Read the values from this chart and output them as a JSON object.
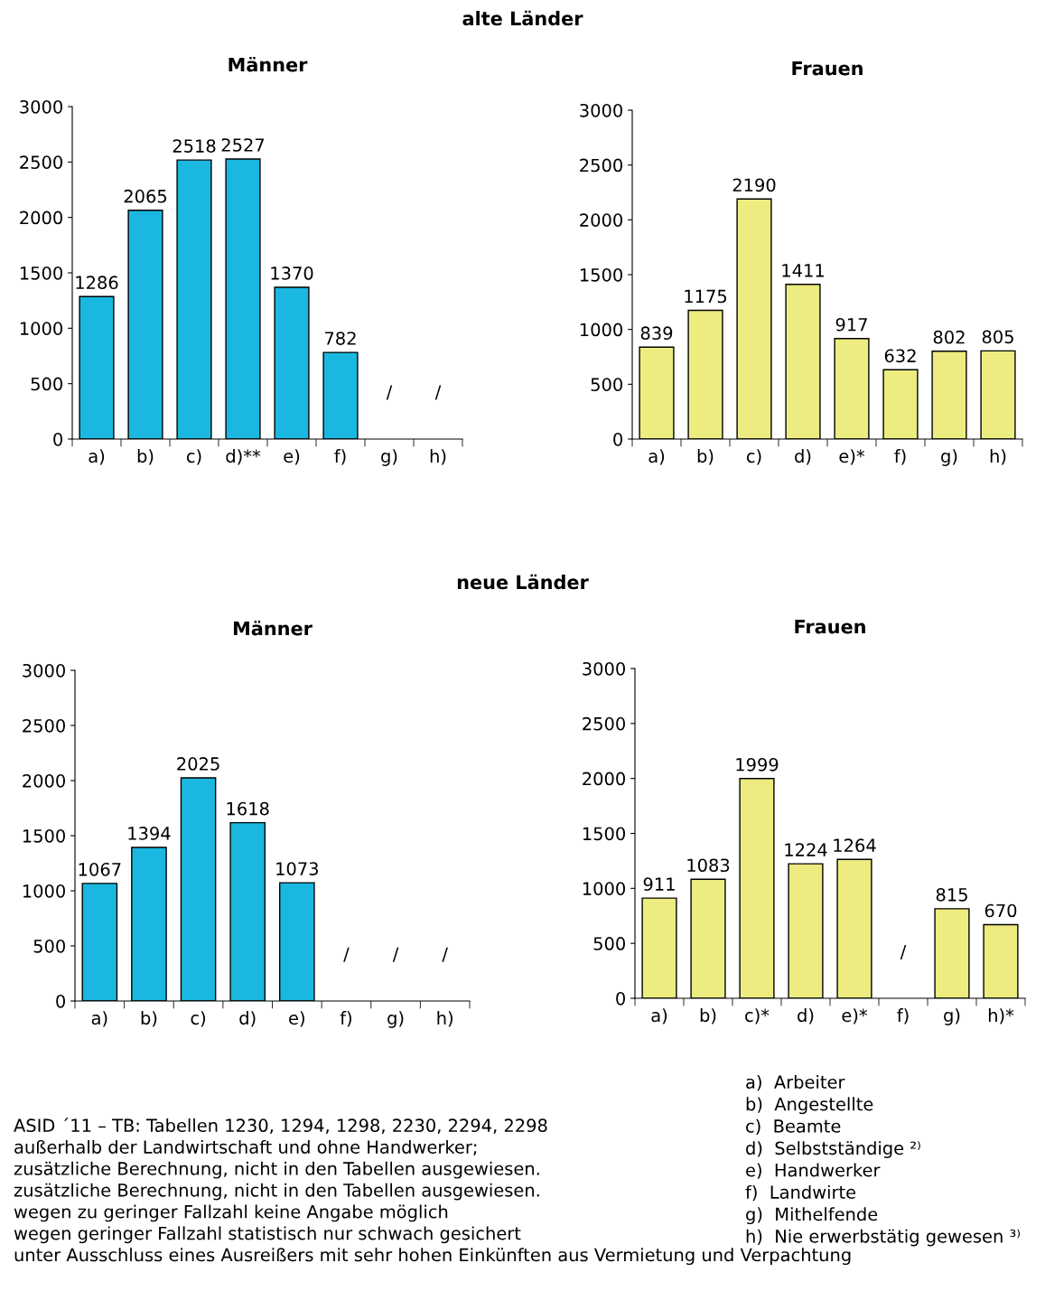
{
  "chart_data": [
    {
      "type": "bar",
      "title": "Männer",
      "annotations": [
        "alte Länder"
      ],
      "categories": [
        "a)",
        "b)",
        "c)",
        "d)**",
        "e)",
        "f)",
        "g)",
        "h)"
      ],
      "values": [
        1286,
        2065,
        2518,
        2527,
        1370,
        782,
        null,
        null
      ],
      "value_labels": [
        "1286",
        "2065",
        "2518",
        "2527",
        "1370",
        "782",
        "/",
        "/"
      ],
      "color": "#1ab8e0",
      "ylim": [
        0,
        3000
      ],
      "yticks": [
        0,
        500,
        1000,
        1500,
        2000,
        2500,
        3000
      ],
      "grid": false,
      "legend": false
    },
    {
      "type": "bar",
      "title": "Frauen",
      "categories": [
        "a)",
        "b)",
        "c)",
        "d)",
        "e)*",
        "f)",
        "g)",
        "h)"
      ],
      "values": [
        839,
        1175,
        2190,
        1411,
        917,
        632,
        802,
        805
      ],
      "value_labels": [
        "839",
        "1175",
        "2190",
        "1411",
        "917",
        "632",
        "802",
        "805"
      ],
      "color": "#ecec80",
      "ylim": [
        0,
        3000
      ],
      "yticks": [
        0,
        500,
        1000,
        1500,
        2000,
        2500,
        3000
      ],
      "grid": false,
      "legend": false
    },
    {
      "type": "bar",
      "title": "Männer",
      "annotations": [
        "neue Länder"
      ],
      "categories": [
        "a)",
        "b)",
        "c)",
        "d)",
        "e)",
        "f)",
        "g)",
        "h)"
      ],
      "values": [
        1067,
        1394,
        2025,
        1618,
        1073,
        null,
        null,
        null
      ],
      "value_labels": [
        "1067",
        "1394",
        "2025",
        "1618",
        "1073",
        "/",
        "/",
        "/"
      ],
      "color": "#1ab8e0",
      "ylim": [
        0,
        3000
      ],
      "yticks": [
        0,
        500,
        1000,
        1500,
        2000,
        2500,
        3000
      ],
      "grid": false,
      "legend": false
    },
    {
      "type": "bar",
      "title": "Frauen",
      "categories": [
        "a)",
        "b)",
        "c)*",
        "d)",
        "e)*",
        "f)",
        "g)",
        "h)*"
      ],
      "values": [
        911,
        1083,
        1999,
        1224,
        1264,
        null,
        815,
        670
      ],
      "value_labels": [
        "911",
        "1083",
        "1999",
        "1224",
        "1264",
        "/",
        "815",
        "670"
      ],
      "color": "#ecec80",
      "ylim": [
        0,
        3000
      ],
      "yticks": [
        0,
        500,
        1000,
        1500,
        2000,
        2500,
        3000
      ],
      "grid": false,
      "legend": false
    },
    {
      "type": "other",
      "annotations": [
        "ASID ´11 – TB: Tabellen 1230, 1294, 1298, 2230, 2294, 2298",
        "außerhalb der Landwirtschaft und ohne Handwerker;",
        "zusätzliche Berechnung, nicht in den Tabellen ausgewiesen.",
        "zusätzliche Berechnung, nicht in den Tabellen ausgewiesen.",
        "wegen zu geringer Fallzahl keine Angabe möglich",
        "wegen geringer Fallzahl statistisch nur schwach gesichert",
        "unter Ausschluss eines Ausreißers mit sehr hohen Einkünften aus Vermietung und Verpachtung"
      ]
    },
    {
      "type": "other",
      "annotations": [
        "a)  Arbeiter",
        "b)  Angestellte",
        "c)  Beamte",
        "d)  Selbstständige ²⁾",
        "e)  Handwerker",
        "f)  Landwirte",
        "g)  Mithelfende",
        "h)  Nie erwerbstätig gewesen ³⁾"
      ]
    }
  ]
}
